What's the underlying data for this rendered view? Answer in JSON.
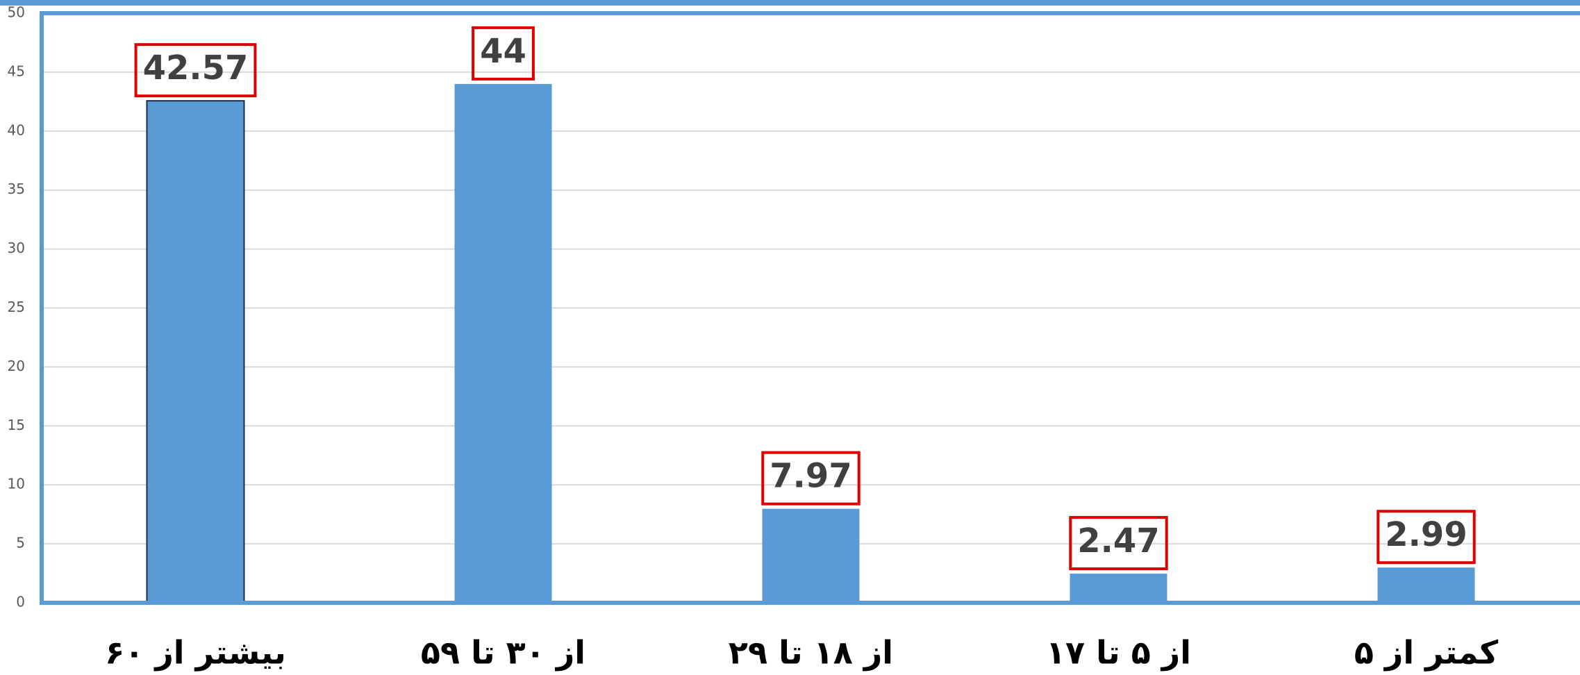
{
  "chart_data": {
    "type": "bar",
    "categories": [
      "بیشتر از ۶۰",
      "از ۳۰ تا ۵۹",
      "از ۱۸ تا ۲۹",
      "از ۵ تا ۱۷",
      "کمتر از ۵"
    ],
    "values": [
      42.57,
      44,
      7.97,
      2.47,
      2.99
    ],
    "color": "#5b9bd5",
    "ylim": [
      0,
      50
    ],
    "yticks": [
      0,
      5,
      10,
      15,
      20,
      25,
      30,
      35,
      40,
      45,
      50
    ],
    "grid": true
  }
}
